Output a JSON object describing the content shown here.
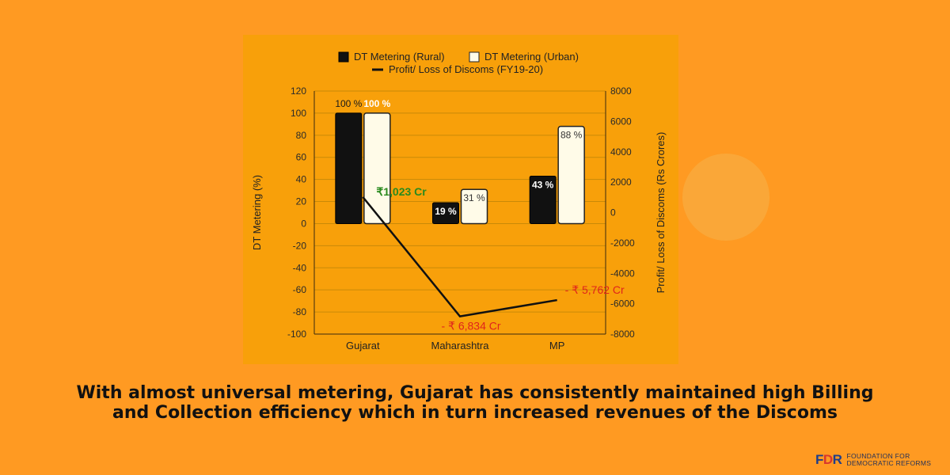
{
  "caption": "With almost universal metering, Gujarat has consistently maintained high Billing and Collection efficiency which in turn increased revenues of the Discoms",
  "logo": {
    "mark_f": "F",
    "mark_d": "D",
    "mark_r": "R",
    "line1": "FOUNDATION FOR",
    "line2": "DEMOCRATIC REFORMS"
  },
  "colors": {
    "background": "#ff9a22",
    "panel": "#f8a00a",
    "rural": "#111111",
    "urban": "#fffbe8",
    "line": "#111111",
    "profit_label": "#2a8a1e",
    "loss_label": "#e0241c"
  },
  "chart_data": {
    "type": "bar",
    "categories": [
      "Gujarat",
      "Maharashtra",
      "MP"
    ],
    "series": [
      {
        "name": "DT Metering (Rural)",
        "type": "bar",
        "axis": "left",
        "values": [
          100,
          19,
          43
        ],
        "labels": [
          "100 %",
          "19 %",
          "43 %"
        ]
      },
      {
        "name": "DT Metering (Urban)",
        "type": "bar",
        "axis": "left",
        "values": [
          100,
          31,
          88
        ],
        "labels": [
          "100 %",
          "31 %",
          "88 %"
        ]
      },
      {
        "name": "Profit/ Loss of Discoms (FY19-20)",
        "type": "line",
        "axis": "right",
        "values": [
          1023,
          -6834,
          -5762
        ],
        "labels": [
          "₹1,023 Cr",
          "- ₹ 6,834 Cr",
          "- ₹ 5,762 Cr"
        ]
      }
    ],
    "ylabel": "DT Metering (%)",
    "y2label": "Profit/ Loss of Discoms (Rs Crores)",
    "ylim": [
      -100,
      120
    ],
    "y2lim": [
      -8000,
      8000
    ],
    "yticks": [
      "120",
      "100",
      "80",
      "60",
      "40",
      "20",
      "0",
      "-20",
      "-40",
      "-60",
      "-80",
      "-100"
    ],
    "y2ticks": [
      "8000",
      "6000",
      "4000",
      "2000",
      "0",
      "-2000",
      "-4000",
      "-6000",
      "-8000"
    ],
    "grid": true,
    "legend_position": "top"
  }
}
